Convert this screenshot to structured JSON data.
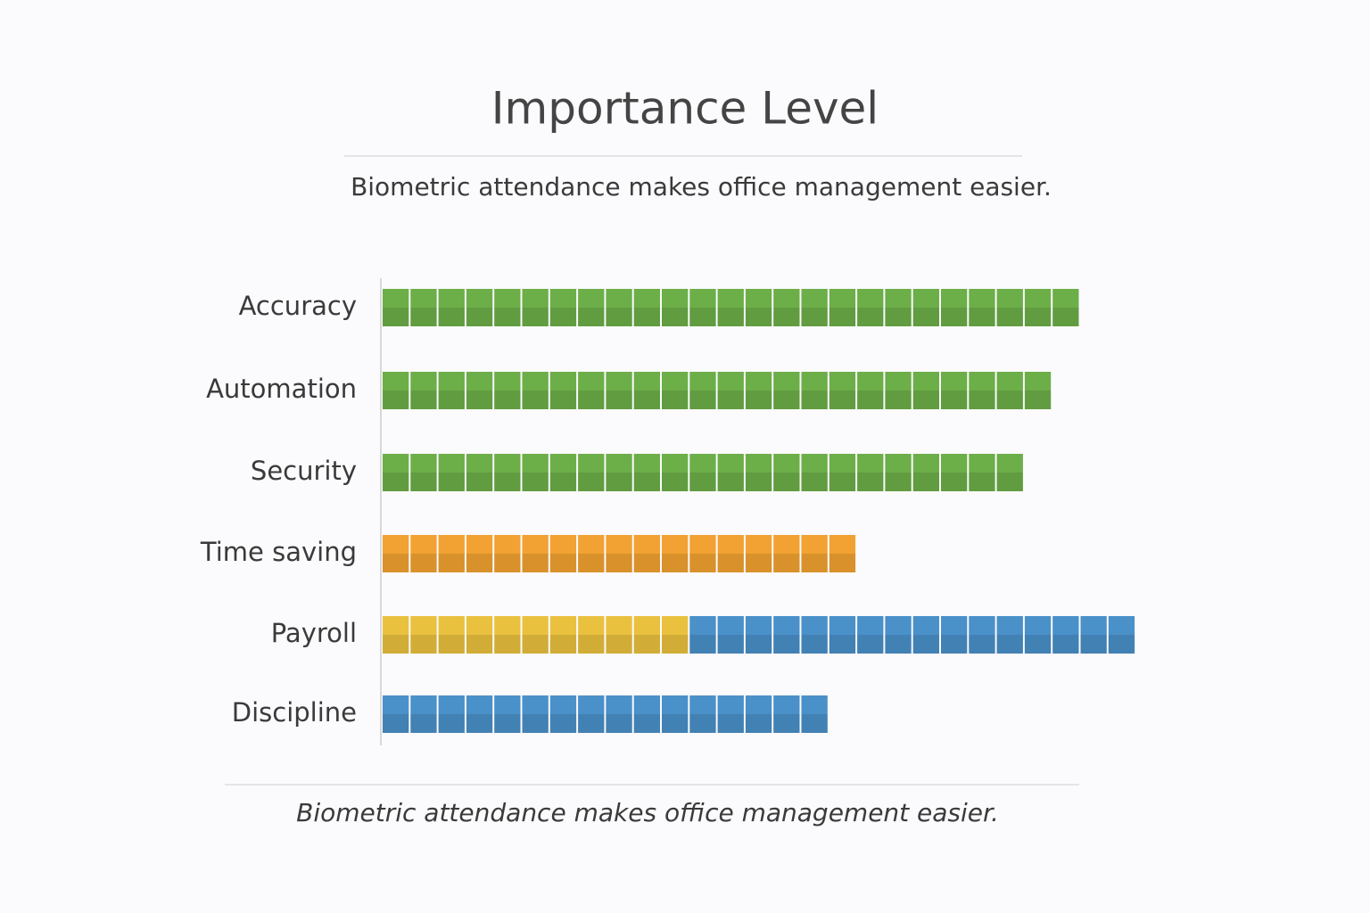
{
  "chart_data": {
    "type": "unit-bar",
    "title": "Importance Level",
    "subtitle": "Biometric attendance makes office management easier.",
    "caption": "Biometric attendance makes office management easier.",
    "categories": [
      "Accuracy",
      "Automation",
      "Security",
      "Time saving",
      "Payroll",
      "Discipline"
    ],
    "series": [
      {
        "color": "#6cae48",
        "values": [
          25,
          24,
          23,
          0,
          0,
          0
        ]
      },
      {
        "color": "#f2a232",
        "values": [
          0,
          0,
          0,
          17,
          0,
          0
        ]
      },
      {
        "color": "#e9c13f",
        "values": [
          0,
          0,
          0,
          0,
          11,
          0
        ]
      },
      {
        "color": "#4a90c9",
        "values": [
          0,
          0,
          0,
          0,
          16,
          16
        ]
      }
    ]
  }
}
